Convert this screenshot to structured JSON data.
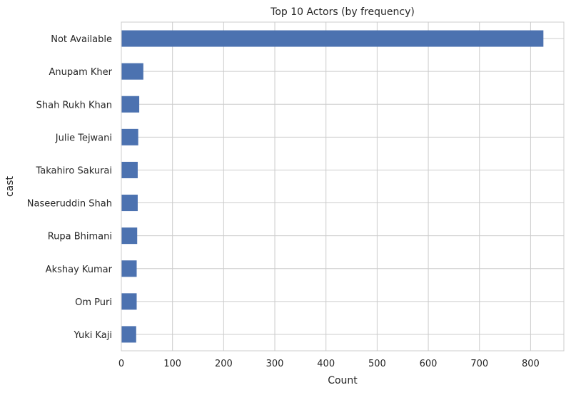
{
  "chart_data": {
    "type": "bar",
    "orientation": "horizontal",
    "title": "Top 10 Actors (by frequency)",
    "xlabel": "Count",
    "ylabel": "cast",
    "categories": [
      "Not Available",
      "Anupam Kher",
      "Shah Rukh Khan",
      "Julie Tejwani",
      "Takahiro Sakurai",
      "Naseeruddin Shah",
      "Rupa Bhimani",
      "Akshay Kumar",
      "Om Puri",
      "Yuki Kaji"
    ],
    "values": [
      825,
      43,
      35,
      33,
      32,
      32,
      31,
      30,
      30,
      29
    ],
    "xlim": [
      0,
      865
    ],
    "xticks": [
      0,
      100,
      200,
      300,
      400,
      500,
      600,
      700,
      800
    ],
    "grid": true,
    "legend": "none",
    "bar_color": "#4c72b0",
    "grid_color": "#cccccc"
  }
}
